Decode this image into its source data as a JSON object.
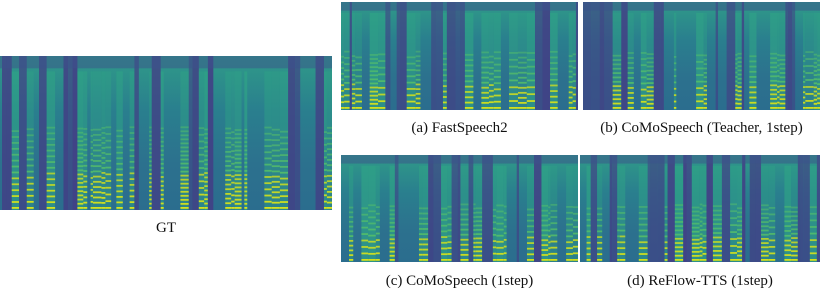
{
  "panels": [
    {
      "caption": "GT"
    },
    {
      "caption": "(a) FastSpeech2"
    },
    {
      "caption": "(b) CoMoSpeech (Teacher, 1step)"
    },
    {
      "caption": "(c) CoMoSpeech (1step)"
    },
    {
      "caption": "(d) ReFlow-TTS (1step)"
    }
  ]
}
